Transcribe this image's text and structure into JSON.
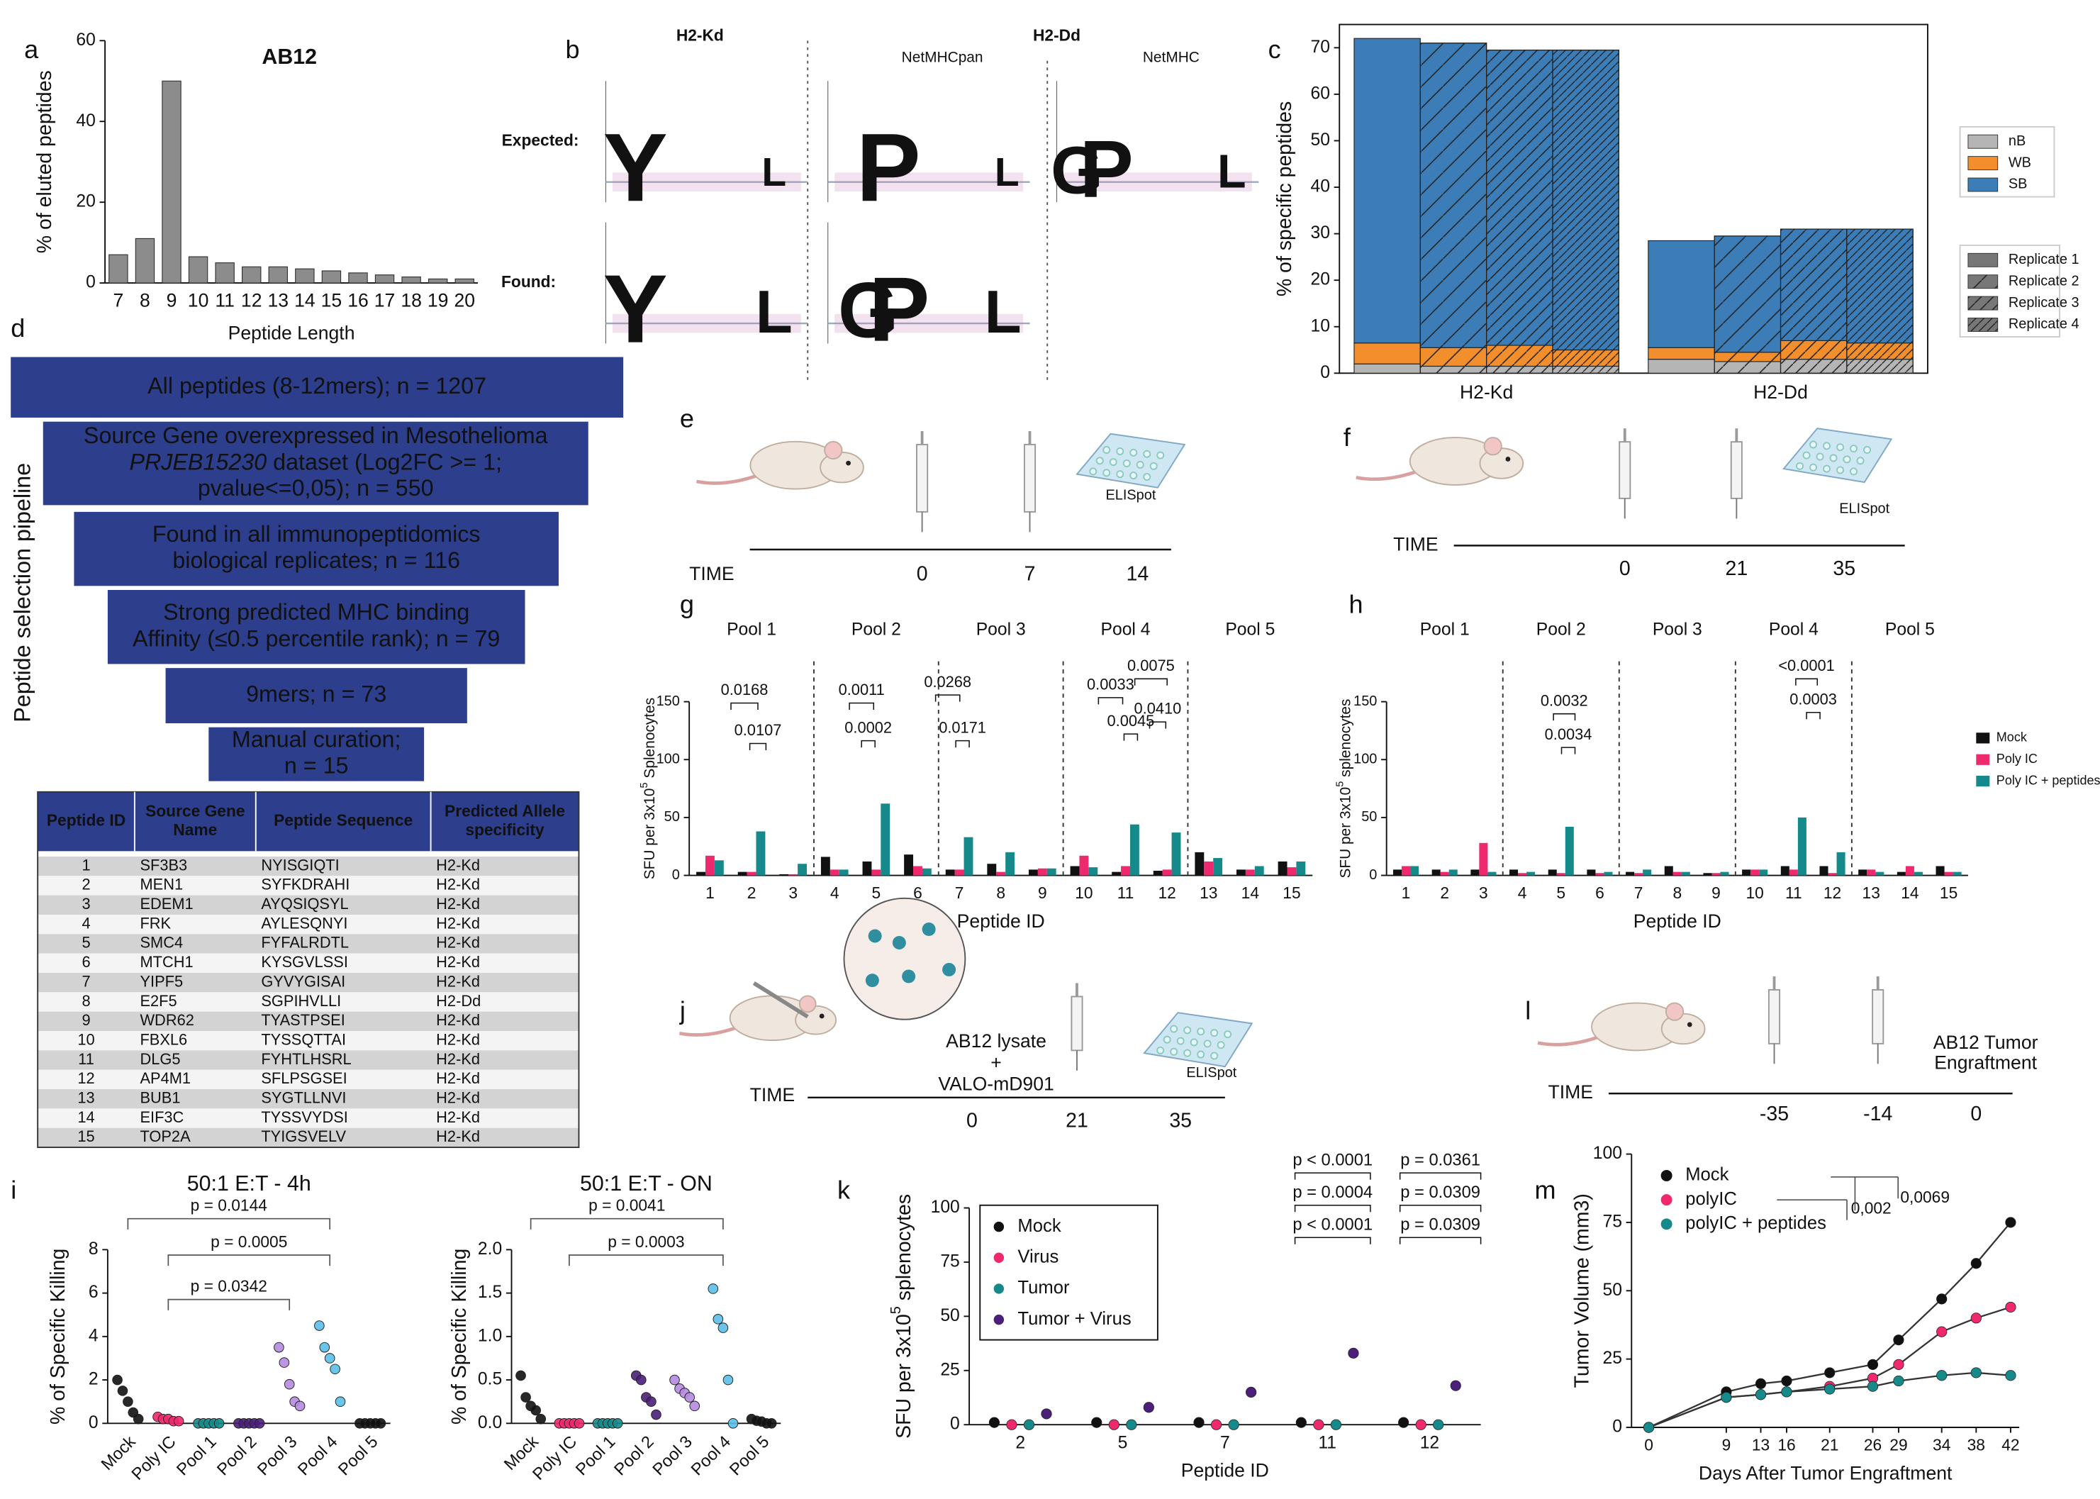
{
  "panel_labels": [
    "a",
    "b",
    "c",
    "d",
    "e",
    "f",
    "g",
    "h",
    "i",
    "j",
    "k",
    "l",
    "m"
  ],
  "chart_data": [
    {
      "type": "bar",
      "title": "AB12",
      "categories": [
        7,
        8,
        9,
        10,
        11,
        12,
        13,
        14,
        15,
        16,
        17,
        18,
        19,
        20
      ],
      "values": [
        7,
        11,
        50,
        6.5,
        5,
        4,
        4,
        3.5,
        3,
        2.5,
        2,
        1.5,
        1,
        1
      ],
      "color": "#8c8c8c",
      "ylim": [
        0,
        60
      ],
      "yticks": [
        0,
        20,
        40,
        60
      ],
      "ylabel": "% of eluted peptides",
      "xlabel": "Peptide Length"
    },
    {
      "type": "stacked_bar",
      "categories": [
        "H2-Kd",
        "H2-Dd"
      ],
      "replicates": [
        "Replicate 1",
        "Replicate 2",
        "Replicate 3",
        "Replicate 4"
      ],
      "series": [
        {
          "name": "nB",
          "color": "#b5b5b5",
          "values": [
            [
              2,
              1.5,
              1.5,
              1.5
            ],
            [
              3,
              2.5,
              3,
              3
            ]
          ]
        },
        {
          "name": "WB",
          "color": "#f28e2b",
          "values": [
            [
              4.5,
              4,
              4.5,
              3.5
            ],
            [
              2.5,
              2,
              4,
              3.5
            ]
          ]
        },
        {
          "name": "SB",
          "color": "#3c7db8",
          "values": [
            [
              65.5,
              65.5,
              63.5,
              64.5
            ],
            [
              23,
              25,
              24,
              24.5
            ]
          ]
        }
      ],
      "ylim": [
        0,
        75
      ],
      "yticks": [
        0,
        10,
        20,
        30,
        40,
        50,
        60,
        70
      ],
      "ylabel": "% of specific peptides"
    },
    {
      "type": "grouped_bar",
      "groups": [
        "Pool 1",
        "Pool 2",
        "Pool 3",
        "Pool 4",
        "Pool 5"
      ],
      "categories": [
        1,
        2,
        3,
        4,
        5,
        6,
        7,
        8,
        9,
        10,
        11,
        12,
        13,
        14,
        15
      ],
      "series": [
        {
          "name": "Mock",
          "color": "#111111",
          "values": [
            3,
            3,
            1,
            16,
            12,
            18,
            5,
            10,
            5,
            8,
            3,
            4,
            20,
            5,
            12
          ]
        },
        {
          "name": "Poly IC",
          "color": "#f0286e",
          "values": [
            17,
            3,
            1,
            5,
            5,
            8,
            5,
            3,
            6,
            17,
            8,
            5,
            12,
            5,
            7
          ]
        },
        {
          "name": "Poly IC + peptides",
          "color": "#168a8a",
          "values": [
            13,
            38,
            10,
            5,
            62,
            6,
            33,
            20,
            6,
            7,
            44,
            37,
            15,
            8,
            12
          ]
        }
      ],
      "ylim": [
        0,
        150
      ],
      "yticks": [
        0,
        50,
        100,
        150
      ],
      "ylabel": [
        "SFU per 3x10",
        "5",
        " Splenocytes"
      ],
      "xlabel": "Peptide ID",
      "annotations": [
        "0.0168",
        "0.0107",
        "0.0011",
        "0.0002",
        "0.0268",
        "0.0171",
        "0.0033",
        "0.0045",
        "0.0075",
        "0.0410"
      ]
    },
    {
      "type": "grouped_bar",
      "groups": [
        "Pool 1",
        "Pool 2",
        "Pool 3",
        "Pool 4",
        "Pool 5"
      ],
      "categories": [
        1,
        2,
        3,
        4,
        5,
        6,
        7,
        8,
        9,
        10,
        11,
        12,
        13,
        14,
        15
      ],
      "series": [
        {
          "name": "Mock",
          "color": "#111111",
          "values": [
            5,
            5,
            5,
            5,
            5,
            5,
            3,
            8,
            2,
            5,
            8,
            8,
            5,
            3,
            8
          ]
        },
        {
          "name": "Poly IC",
          "color": "#f0286e",
          "values": [
            8,
            3,
            28,
            2,
            2,
            2,
            2,
            3,
            2,
            5,
            5,
            2,
            5,
            8,
            3
          ]
        },
        {
          "name": "Poly IC + peptides",
          "color": "#168a8a",
          "values": [
            8,
            5,
            3,
            3,
            42,
            3,
            5,
            3,
            3,
            5,
            50,
            20,
            3,
            3,
            3
          ]
        }
      ],
      "ylim": [
        0,
        150
      ],
      "yticks": [
        0,
        50,
        100,
        150
      ],
      "ylabel": [
        "SFU per 3x10",
        "5",
        " splenocytes"
      ],
      "xlabel": "Peptide ID",
      "legend": "right",
      "annotations": [
        "0.0032",
        "0.0034",
        "<0.0001",
        "0.0003"
      ]
    },
    {
      "type": "dot",
      "title": "50:1 E:T - 4h",
      "categories": [
        "Mock",
        "Poly IC",
        "Pool 1",
        "Pool 2",
        "Pool 3",
        "Pool 4",
        "Pool 5"
      ],
      "colors": [
        "#111111",
        "#f0286e",
        "#168a8a",
        "#4b1f7a",
        "#b58ae0",
        "#5bbfe8",
        "#111111"
      ],
      "points": [
        [
          2,
          1.5,
          1,
          0.5,
          0.2
        ],
        [
          0.3,
          0.2,
          0.2,
          0.1,
          0.1
        ],
        [
          0,
          0,
          0,
          0,
          0
        ],
        [
          0,
          0,
          0,
          0,
          0
        ],
        [
          3.5,
          2.8,
          1.8,
          1,
          0.8
        ],
        [
          4.5,
          3.5,
          3,
          2.5,
          1
        ],
        [
          0,
          0,
          0,
          0,
          0
        ]
      ],
      "ylim": [
        0,
        8
      ],
      "yticks": [
        0,
        2,
        4,
        6,
        8
      ],
      "ylabel": "% of Specific Killing",
      "annotations": [
        "p = 0.0144",
        "p = 0.0005",
        "p = 0.0342"
      ]
    },
    {
      "type": "dot",
      "title": "50:1 E:T - ON",
      "categories": [
        "Mock",
        "Poly IC",
        "Pool 1",
        "Pool 2",
        "Pool 3",
        "Pool 4",
        "Pool 5"
      ],
      "colors": [
        "#111111",
        "#f0286e",
        "#168a8a",
        "#4b1f7a",
        "#b58ae0",
        "#5bbfe8",
        "#111111"
      ],
      "points": [
        [
          0.55,
          0.3,
          0.2,
          0.15,
          0.05
        ],
        [
          0,
          0,
          0,
          0,
          0
        ],
        [
          0,
          0,
          0,
          0,
          0
        ],
        [
          0.55,
          0.5,
          0.3,
          0.25,
          0.1
        ],
        [
          0.5,
          0.4,
          0.35,
          0.3,
          0.2
        ],
        [
          1.55,
          1.2,
          1.1,
          0.5,
          0
        ],
        [
          0.05,
          0.03,
          0.02,
          0,
          0
        ]
      ],
      "ylim": [
        0,
        2
      ],
      "yticks": [
        {
          "value": 0,
          "label": "0.0"
        },
        0.5,
        {
          "value": 1,
          "label": "1.0"
        },
        1.5,
        {
          "value": 2,
          "label": "2.0"
        }
      ],
      "ylabel": "% of Specific Killing",
      "annotations": [
        "p = 0.0041",
        "p = 0.0003"
      ]
    },
    {
      "type": "dot_series",
      "categories": [
        2,
        5,
        7,
        11,
        12
      ],
      "series": [
        {
          "name": "Mock",
          "color": "#111111",
          "values": [
            1,
            1,
            1,
            1,
            1
          ]
        },
        {
          "name": "Virus",
          "color": "#f0286e",
          "values": [
            0,
            0,
            0,
            0,
            0
          ]
        },
        {
          "name": "Tumor",
          "color": "#168a8a",
          "values": [
            0,
            0,
            0,
            0,
            0
          ]
        },
        {
          "name": "Tumor + Virus",
          "color": "#4b1f7a",
          "values": [
            5,
            8,
            15,
            33,
            18
          ]
        }
      ],
      "ylim": [
        0,
        100
      ],
      "yticks": [
        0,
        25,
        50,
        75,
        100
      ],
      "ylabel": [
        "SFU per 3x10",
        "5",
        " splenocytes"
      ],
      "xlabel": "Peptide ID",
      "annotations": [
        "p < 0.0001",
        "p = 0.0004",
        "p < 0.0001",
        "p = 0.0361",
        "p = 0.0309",
        "p = 0.0309"
      ]
    },
    {
      "type": "line",
      "x": [
        0,
        9,
        13,
        16,
        21,
        26,
        29,
        34,
        38,
        42
      ],
      "series": [
        {
          "name": "Mock",
          "color": "#111111",
          "values": [
            0,
            13,
            16,
            17,
            20,
            23,
            32,
            47,
            60,
            75
          ]
        },
        {
          "name": "polyIC",
          "color": "#f0286e",
          "values": [
            0,
            11,
            12,
            13,
            15,
            18,
            23,
            35,
            40,
            44
          ]
        },
        {
          "name": "polyIC + peptides",
          "color": "#168a8a",
          "values": [
            0,
            11,
            12,
            13,
            14,
            15,
            17,
            19,
            20,
            19
          ]
        }
      ],
      "xlim": [
        -2,
        43
      ],
      "xticks": [
        0,
        9,
        13,
        16,
        21,
        26,
        29,
        34,
        38,
        42
      ],
      "ylim": [
        0,
        100
      ],
      "yticks": [
        0,
        25,
        50,
        75,
        100
      ],
      "ylabel": "Tumor Volume (mm3)",
      "xlabel": "Days After Tumor Engraftment",
      "annotations": [
        "0,002",
        "0,0069"
      ]
    }
  ],
  "logos": {
    "titles": [
      "H2-Kd",
      "H2-Dd"
    ],
    "methods": [
      "NetMHCpan",
      "NetMHC"
    ],
    "rows": [
      "Expected:",
      "Found:"
    ],
    "panels": [
      {
        "letters": [
          "Y",
          "L"
        ]
      },
      {
        "letters": [
          "P",
          "L"
        ]
      },
      {
        "letters": [
          "G",
          "P",
          "L"
        ]
      },
      {
        "letters": [
          "Y",
          "L"
        ]
      },
      {
        "letters": [
          "G",
          "P",
          "L"
        ]
      }
    ]
  },
  "pipeline": {
    "side_label": "Peptide selection pipeline",
    "boxes": [
      [
        "All peptides (8-12mers); n = 1207"
      ],
      [
        "Source Gene overexpressed in Mesothelioma",
        [
          "PRJEB15230",
          " dataset (Log2FC >= 1;"
        ],
        "pvalue<=0,05); n = 550"
      ],
      [
        "Found in all immunopeptidomics",
        "biological replicates; n = 116"
      ],
      [
        "Strong predicted MHC binding",
        "Affinity (≤0.5 percentile rank); n = 79"
      ],
      [
        "9mers; n = 73"
      ],
      [
        "Manual curation;",
        "n = 15"
      ]
    ]
  },
  "table": {
    "header": [
      [
        "Peptide ID"
      ],
      [
        "Source Gene",
        "Name"
      ],
      [
        "Peptide Sequence"
      ],
      [
        "Predicted Allele",
        "specificity"
      ]
    ],
    "rows": [
      [
        "1",
        "SF3B3",
        "NYISGIQTI",
        "H2-Kd"
      ],
      [
        "2",
        "MEN1",
        "SYFKDRAHI",
        "H2-Kd"
      ],
      [
        "3",
        "EDEM1",
        "AYQSIQSYL",
        "H2-Kd"
      ],
      [
        "4",
        "FRK",
        "AYLESQNYI",
        "H2-Kd"
      ],
      [
        "5",
        "SMC4",
        "FYFALRDTL",
        "H2-Kd"
      ],
      [
        "6",
        "MTCH1",
        "KYSGVLSSI",
        "H2-Kd"
      ],
      [
        "7",
        "YIPF5",
        "GYVYGISAI",
        "H2-Kd"
      ],
      [
        "8",
        "E2F5",
        "SGPIHVLLI",
        "H2-Dd"
      ],
      [
        "9",
        "WDR62",
        "TYASTPSEI",
        "H2-Kd"
      ],
      [
        "10",
        "FBXL6",
        "TYSSQTTAI",
        "H2-Kd"
      ],
      [
        "11",
        "DLG5",
        "FYHTLHSRL",
        "H2-Kd"
      ],
      [
        "12",
        "AP4M1",
        "SFLPSGSEI",
        "H2-Kd"
      ],
      [
        "13",
        "BUB1",
        "SYGTLLNVI",
        "H2-Kd"
      ],
      [
        "14",
        "EIF3C",
        "TYSSVYDSI",
        "H2-Kd"
      ],
      [
        "15",
        "TOP2A",
        "TYIGSVELV",
        "H2-Kd"
      ]
    ]
  },
  "schematics": [
    {
      "axis": "TIME",
      "ticks": [
        "0",
        "7",
        "14"
      ],
      "notes": [
        "ELISpot"
      ]
    },
    {
      "axis": "TIME",
      "ticks": [
        "0",
        "21",
        "35"
      ],
      "notes": [
        "ELISpot"
      ]
    },
    {
      "axis": "TIME",
      "ticks": [
        "0",
        "21",
        "35"
      ],
      "notes": [
        "AB12 lysate",
        "+",
        "VALO-mD901",
        "ELISpot"
      ]
    },
    {
      "axis": "TIME",
      "ticks": [
        "-35",
        "-14",
        "0"
      ],
      "notes": [
        "AB12 Tumor",
        "Engraftment"
      ]
    }
  ]
}
